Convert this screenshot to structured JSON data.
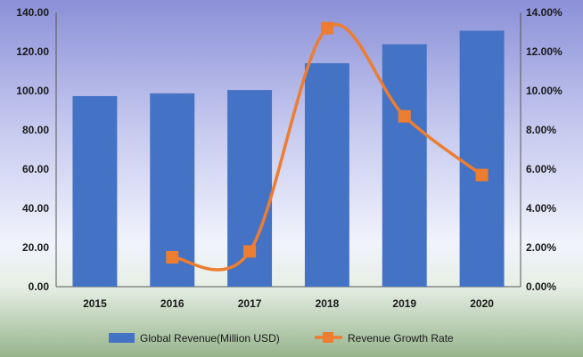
{
  "chart_data": {
    "type": "bar+line",
    "categories": [
      "2015",
      "2016",
      "2017",
      "2018",
      "2019",
      "2020"
    ],
    "series": [
      {
        "name": "Global Revenue(Million USD)",
        "type": "bar",
        "axis": "left",
        "color": "#4472C4",
        "values": [
          97.3,
          98.7,
          100.4,
          114.1,
          123.8,
          130.7
        ]
      },
      {
        "name": "Revenue Growth Rate",
        "type": "line",
        "axis": "right",
        "color": "#ED7D31",
        "smooth": true,
        "values": [
          null,
          1.5,
          1.8,
          13.2,
          8.7,
          5.7
        ]
      }
    ],
    "left_axis": {
      "ylim": [
        0,
        140
      ],
      "ticks": [
        0,
        20,
        40,
        60,
        80,
        100,
        120,
        140
      ],
      "tick_labels": [
        "0.00",
        "20.00",
        "40.00",
        "60.00",
        "80.00",
        "100.00",
        "120.00",
        "140.00"
      ]
    },
    "right_axis": {
      "ylim": [
        0,
        14
      ],
      "ticks": [
        0,
        2,
        4,
        6,
        8,
        10,
        12,
        14
      ],
      "tick_labels": [
        "0.00%",
        "2.00%",
        "4.00%",
        "6.00%",
        "8.00%",
        "10.00%",
        "12.00%",
        "14.00%"
      ]
    },
    "legend": {
      "position": "bottom",
      "entries": [
        "Global Revenue(Million USD)",
        "Revenue Growth Rate"
      ]
    },
    "title": "",
    "xlabel": "",
    "ylabel": ""
  }
}
